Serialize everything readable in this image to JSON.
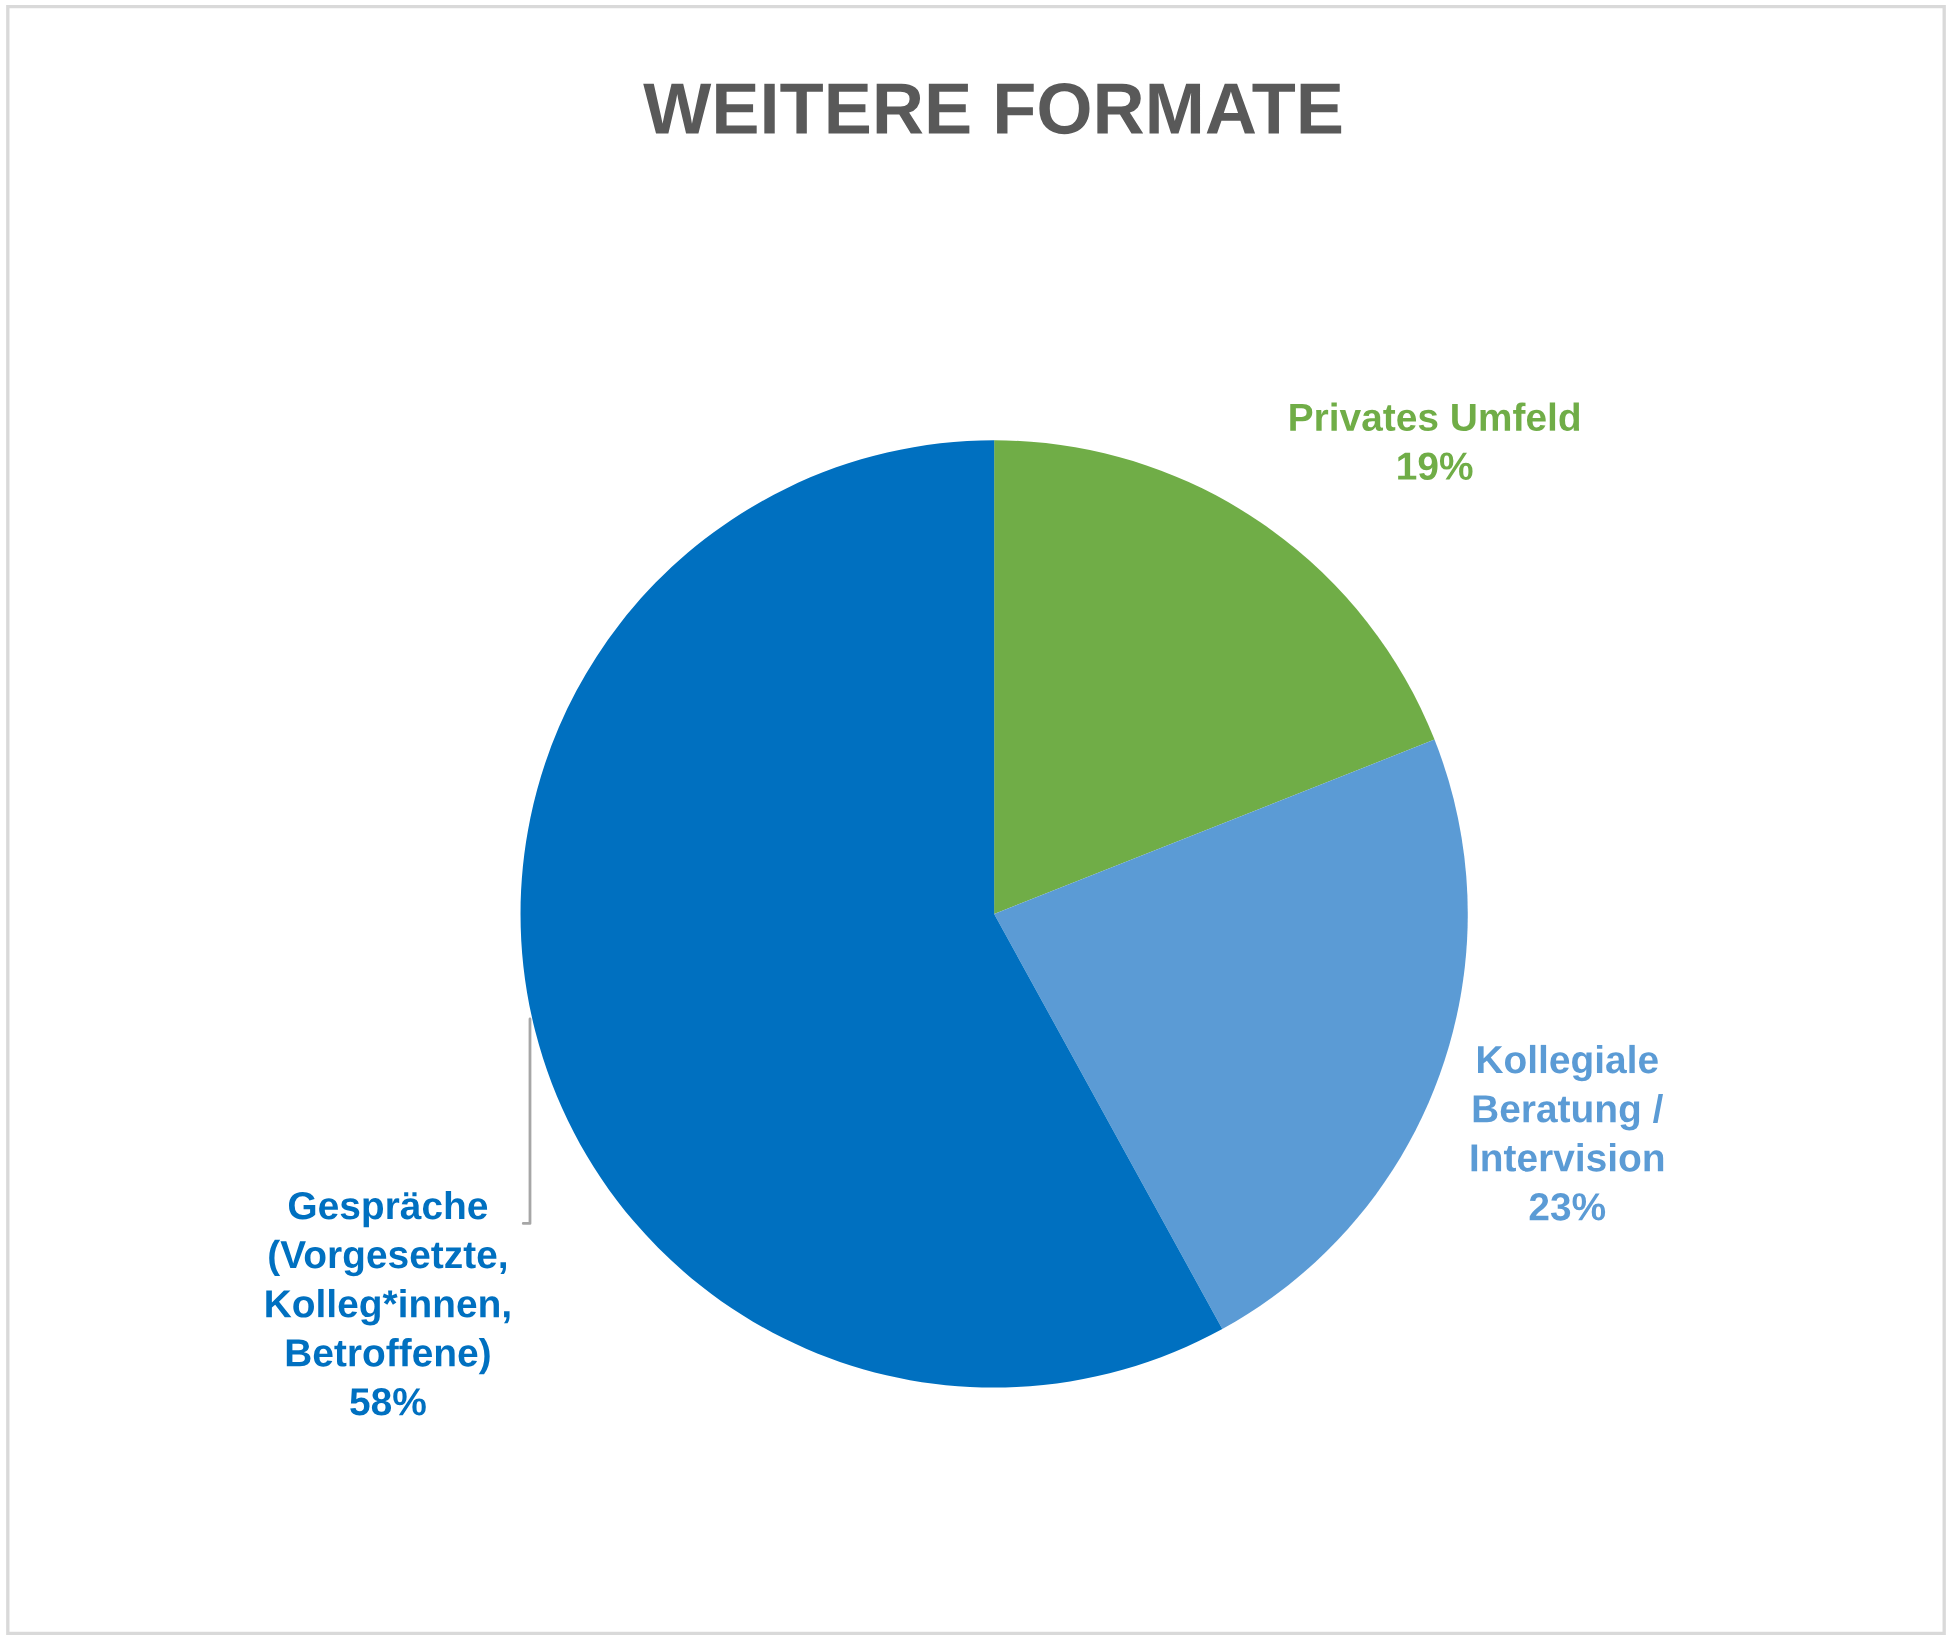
{
  "chart_data": {
    "type": "pie",
    "title": "WEITERE FORMATE",
    "categories": [
      "Privates Umfeld",
      "Kollegiale\nBeratung /\nIntervision",
      "Gespräche\n(Vorgesetzte,\nKolleg*innen,\nBetroffene)"
    ],
    "values": [
      19,
      23,
      58
    ],
    "colors": [
      "#70ad47",
      "#5b9bd5",
      "#0070c0"
    ],
    "value_labels": [
      "19%",
      "23%",
      "58%"
    ],
    "legend": false
  }
}
